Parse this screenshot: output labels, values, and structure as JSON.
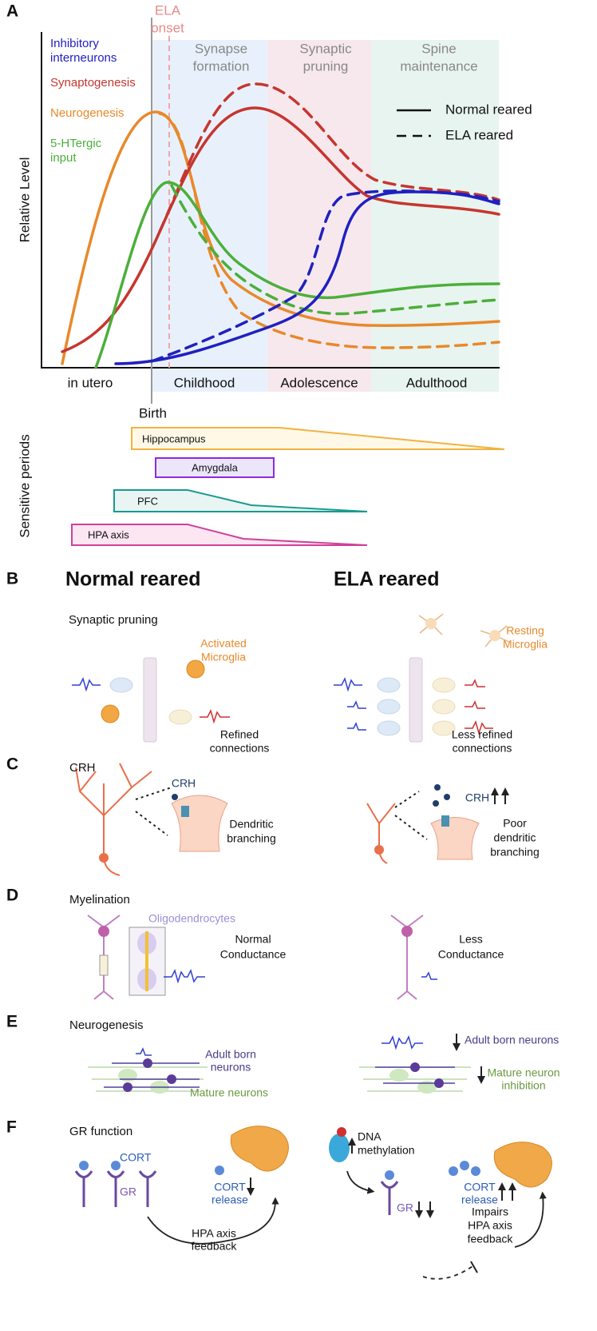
{
  "panel_a": {
    "label": "A",
    "y_axis": "Relative Level",
    "ela_onset": [
      "ELA",
      "onset"
    ],
    "stages": [
      [
        "Synapse",
        "formation"
      ],
      [
        "Synaptic",
        "pruning"
      ],
      [
        "Spine",
        "maintenance"
      ]
    ],
    "curve_labels": [
      [
        "Inhibitory",
        "interneurons"
      ],
      [
        "Synaptogenesis"
      ],
      [
        "Neurogenesis"
      ],
      [
        "5-HTergic",
        "input"
      ]
    ],
    "line_legend": [
      "Normal reared",
      "ELA reared"
    ],
    "periods": [
      "in utero",
      "Childhood",
      "Adolescence",
      "Adulthood"
    ],
    "birth": "Birth",
    "sensitive_label": "Sensitive periods",
    "sensitive": [
      "Hippocampus",
      "Amygdala",
      "PFC",
      "HPA axis"
    ]
  },
  "panel_b": {
    "label": "B",
    "normal": "Normal reared",
    "ela": "ELA reared",
    "topic": "Synaptic pruning",
    "activated": [
      "Activated",
      "Microglia"
    ],
    "resting": [
      "Resting",
      "Microglia"
    ],
    "refined": [
      "Refined",
      "connections"
    ],
    "less_refined": [
      "Less refined",
      "connections"
    ]
  },
  "panel_c": {
    "label": "C",
    "topic": "CRH",
    "crh_normal": "CRH",
    "crh_ela": "CRH",
    "normal_text": [
      "Dendritic",
      "branching"
    ],
    "ela_text": [
      "Poor",
      "dendritic",
      "branching"
    ]
  },
  "panel_d": {
    "label": "D",
    "topic": "Myelination",
    "oligo": "Oligodendrocytes",
    "normal_text": [
      "Normal",
      "Conductance"
    ],
    "ela_text": [
      "Less",
      "Conductance"
    ]
  },
  "panel_e": {
    "label": "E",
    "topic": "Neurogenesis",
    "adult_normal": [
      "Adult born",
      "neurons"
    ],
    "mature_normal": "Mature neurons",
    "adult_ela": "Adult born neurons",
    "mature_ela": [
      "Mature neuron",
      "inhibition"
    ]
  },
  "panel_f": {
    "label": "F",
    "topic": "GR function",
    "cort_normal": "CORT",
    "gr_normal": "GR",
    "release_normal": [
      "CORT",
      "release"
    ],
    "feedback_normal": [
      "HPA axis",
      "feedback"
    ],
    "dna": [
      "DNA",
      "methylation"
    ],
    "gr_ela": "GR",
    "release_ela": [
      "CORT",
      "release"
    ],
    "feedback_ela": [
      "Impairs",
      "HPA axis",
      "feedback"
    ]
  }
}
